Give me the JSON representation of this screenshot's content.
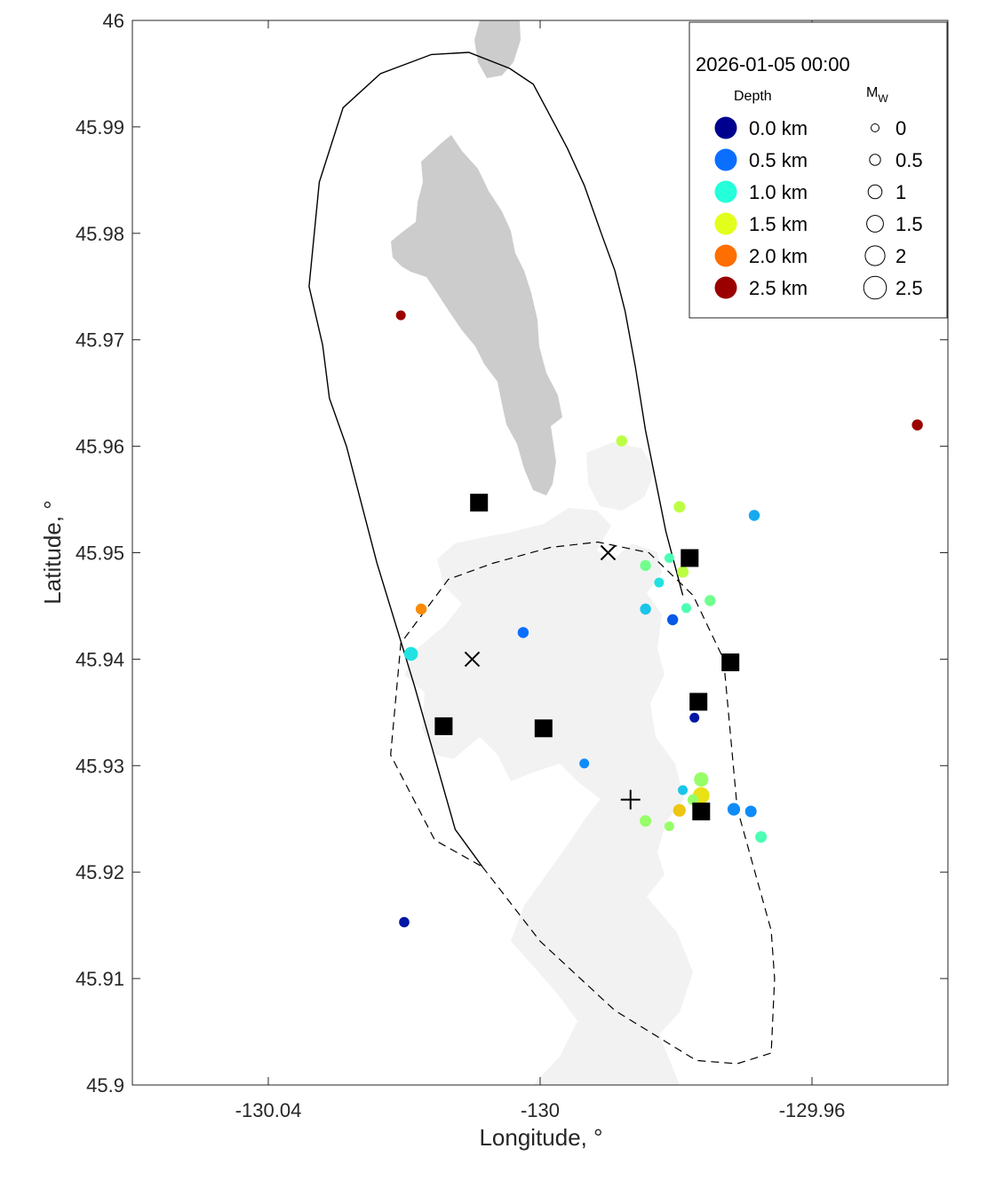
{
  "chart_data": {
    "type": "scatter",
    "title": "",
    "xlabel": "Longitude, °",
    "ylabel": "Latitude, °",
    "xlim": [
      -130.06,
      -129.94
    ],
    "ylim": [
      45.9,
      46.0
    ],
    "xticks": [
      -130.04,
      -130.0,
      -129.96
    ],
    "xtick_labels": [
      "-130.04",
      "-130",
      "-129.96"
    ],
    "yticks": [
      45.9,
      45.91,
      45.92,
      45.93,
      45.94,
      45.95,
      45.96,
      45.97,
      45.98,
      45.99,
      46.0
    ],
    "ytick_labels": [
      "45.9",
      "45.91",
      "45.92",
      "45.93",
      "45.94",
      "45.95",
      "45.96",
      "45.97",
      "45.98",
      "45.99",
      "46"
    ],
    "grid": false,
    "legend": {
      "placement": "top-right",
      "timestamp": "2026-01-05 00:00",
      "depth_header": "Depth",
      "mag_header": "M",
      "mag_header_sub": "W",
      "depth_items": [
        {
          "label": "0.0 km",
          "color": "#00008f"
        },
        {
          "label": "0.5 km",
          "color": "#0a6fff"
        },
        {
          "label": "1.0 km",
          "color": "#25ffda"
        },
        {
          "label": "1.5 km",
          "color": "#e2ff1c"
        },
        {
          "label": "2.0 km",
          "color": "#ff6e00"
        },
        {
          "label": "2.5 km",
          "color": "#9a0000"
        }
      ],
      "mag_items": [
        {
          "label": "0",
          "mag": 0
        },
        {
          "label": "0.5",
          "mag": 0.5
        },
        {
          "label": "1",
          "mag": 1
        },
        {
          "label": "1.5",
          "mag": 1.5
        },
        {
          "label": "2",
          "mag": 2
        },
        {
          "label": "2.5",
          "mag": 2.5
        }
      ]
    },
    "earthquakes": [
      {
        "lon": -130.0205,
        "lat": 45.9723,
        "depth": 2.5,
        "mag": 0.3
      },
      {
        "lon": -129.9445,
        "lat": 45.962,
        "depth": 2.5,
        "mag": 0.5
      },
      {
        "lon": -129.988,
        "lat": 45.9605,
        "depth": 1.4,
        "mag": 0.5
      },
      {
        "lon": -129.9795,
        "lat": 45.9543,
        "depth": 1.4,
        "mag": 0.6
      },
      {
        "lon": -129.9685,
        "lat": 45.9535,
        "depth": 0.7,
        "mag": 0.5
      },
      {
        "lon": -129.9845,
        "lat": 45.9488,
        "depth": 1.2,
        "mag": 0.5
      },
      {
        "lon": -129.981,
        "lat": 45.9495,
        "depth": 1.1,
        "mag": 0.3
      },
      {
        "lon": -129.9825,
        "lat": 45.9472,
        "depth": 0.9,
        "mag": 0.3
      },
      {
        "lon": -129.979,
        "lat": 45.9482,
        "depth": 1.4,
        "mag": 0.6
      },
      {
        "lon": -129.975,
        "lat": 45.9455,
        "depth": 1.2,
        "mag": 0.5
      },
      {
        "lon": -129.9785,
        "lat": 45.9448,
        "depth": 1.1,
        "mag": 0.3
      },
      {
        "lon": -129.9845,
        "lat": 45.9447,
        "depth": 0.8,
        "mag": 0.5
      },
      {
        "lon": -129.9805,
        "lat": 45.9437,
        "depth": 0.4,
        "mag": 0.5
      },
      {
        "lon": -130.0175,
        "lat": 45.9447,
        "depth": 1.9,
        "mag": 0.5
      },
      {
        "lon": -130.0025,
        "lat": 45.9425,
        "depth": 0.5,
        "mag": 0.5
      },
      {
        "lon": -130.019,
        "lat": 45.9405,
        "depth": 0.9,
        "mag": 1.0
      },
      {
        "lon": -129.9773,
        "lat": 45.9345,
        "depth": 0.1,
        "mag": 0.3
      },
      {
        "lon": -129.9935,
        "lat": 45.9302,
        "depth": 0.6,
        "mag": 0.3
      },
      {
        "lon": -129.9763,
        "lat": 45.9287,
        "depth": 1.3,
        "mag": 1.1
      },
      {
        "lon": -129.979,
        "lat": 45.9277,
        "depth": 0.8,
        "mag": 0.3
      },
      {
        "lon": -129.9763,
        "lat": 45.9272,
        "depth": 1.6,
        "mag": 1.5
      },
      {
        "lon": -129.9775,
        "lat": 45.9268,
        "depth": 1.3,
        "mag": 0.5
      },
      {
        "lon": -129.9795,
        "lat": 45.9258,
        "depth": 1.7,
        "mag": 0.8
      },
      {
        "lon": -129.9845,
        "lat": 45.9248,
        "depth": 1.3,
        "mag": 0.6
      },
      {
        "lon": -129.981,
        "lat": 45.9243,
        "depth": 1.3,
        "mag": 0.3
      },
      {
        "lon": -129.9715,
        "lat": 45.9259,
        "depth": 0.6,
        "mag": 0.8
      },
      {
        "lon": -129.969,
        "lat": 45.9257,
        "depth": 0.6,
        "mag": 0.6
      },
      {
        "lon": -129.9675,
        "lat": 45.9233,
        "depth": 1.1,
        "mag": 0.6
      },
      {
        "lon": -130.02,
        "lat": 45.9153,
        "depth": 0.1,
        "mag": 0.4
      }
    ],
    "stations": [
      {
        "lon": -130.009,
        "lat": 45.9547
      },
      {
        "lon": -129.978,
        "lat": 45.9495
      },
      {
        "lon": -129.972,
        "lat": 45.9397
      },
      {
        "lon": -129.9767,
        "lat": 45.936
      },
      {
        "lon": -130.0142,
        "lat": 45.9337
      },
      {
        "lon": -129.9995,
        "lat": 45.9335
      },
      {
        "lon": -129.9763,
        "lat": 45.9257
      }
    ],
    "x_markers": [
      {
        "lon": -129.99,
        "lat": 45.95
      },
      {
        "lon": -130.01,
        "lat": 45.94
      }
    ],
    "plus_markers": [
      {
        "lon": -129.9867,
        "lat": 45.9268
      }
    ],
    "caldera_outline": [
      [
        -130.0085,
        45.9205
      ],
      [
        -130.0125,
        45.924
      ],
      [
        -130.0185,
        45.9375
      ],
      [
        -130.024,
        45.949
      ],
      [
        -130.0285,
        45.96
      ],
      [
        -130.031,
        45.9645
      ],
      [
        -130.032,
        45.9695
      ],
      [
        -130.034,
        45.975
      ],
      [
        -130.0325,
        45.9848
      ],
      [
        -130.029,
        45.9918
      ],
      [
        -130.0235,
        45.995
      ],
      [
        -130.016,
        45.9968
      ],
      [
        -130.0105,
        45.997
      ],
      [
        -130.0045,
        45.9955
      ],
      [
        -130.001,
        45.994
      ],
      [
        -129.999,
        45.9916
      ],
      [
        -129.996,
        45.988
      ],
      [
        -129.9935,
        45.9845
      ],
      [
        -129.991,
        45.98
      ],
      [
        -129.989,
        45.9765
      ],
      [
        -129.9875,
        45.9727
      ],
      [
        -129.986,
        45.9675
      ],
      [
        -129.9845,
        45.9615
      ],
      [
        -129.9815,
        45.952
      ],
      [
        -129.979,
        45.946
      ]
    ],
    "lava_flow_outline": [
      [
        -130.0085,
        45.9205
      ],
      [
        -130.0,
        45.9135
      ],
      [
        -129.989,
        45.907
      ],
      [
        -129.977,
        45.9023
      ],
      [
        -129.971,
        45.902
      ],
      [
        -129.966,
        45.903
      ],
      [
        -129.9655,
        45.91
      ],
      [
        -129.966,
        45.9145
      ],
      [
        -129.971,
        45.926
      ],
      [
        -129.973,
        45.94
      ],
      [
        -129.9775,
        45.946
      ],
      [
        -129.984,
        45.95
      ],
      [
        -129.9915,
        45.951
      ],
      [
        -129.9985,
        45.9505
      ],
      [
        -130.007,
        45.949
      ],
      [
        -130.0135,
        45.9475
      ],
      [
        -130.0205,
        45.9415
      ],
      [
        -130.022,
        45.931
      ],
      [
        -130.0155,
        45.923
      ],
      [
        -130.0085,
        45.9205
      ]
    ]
  }
}
